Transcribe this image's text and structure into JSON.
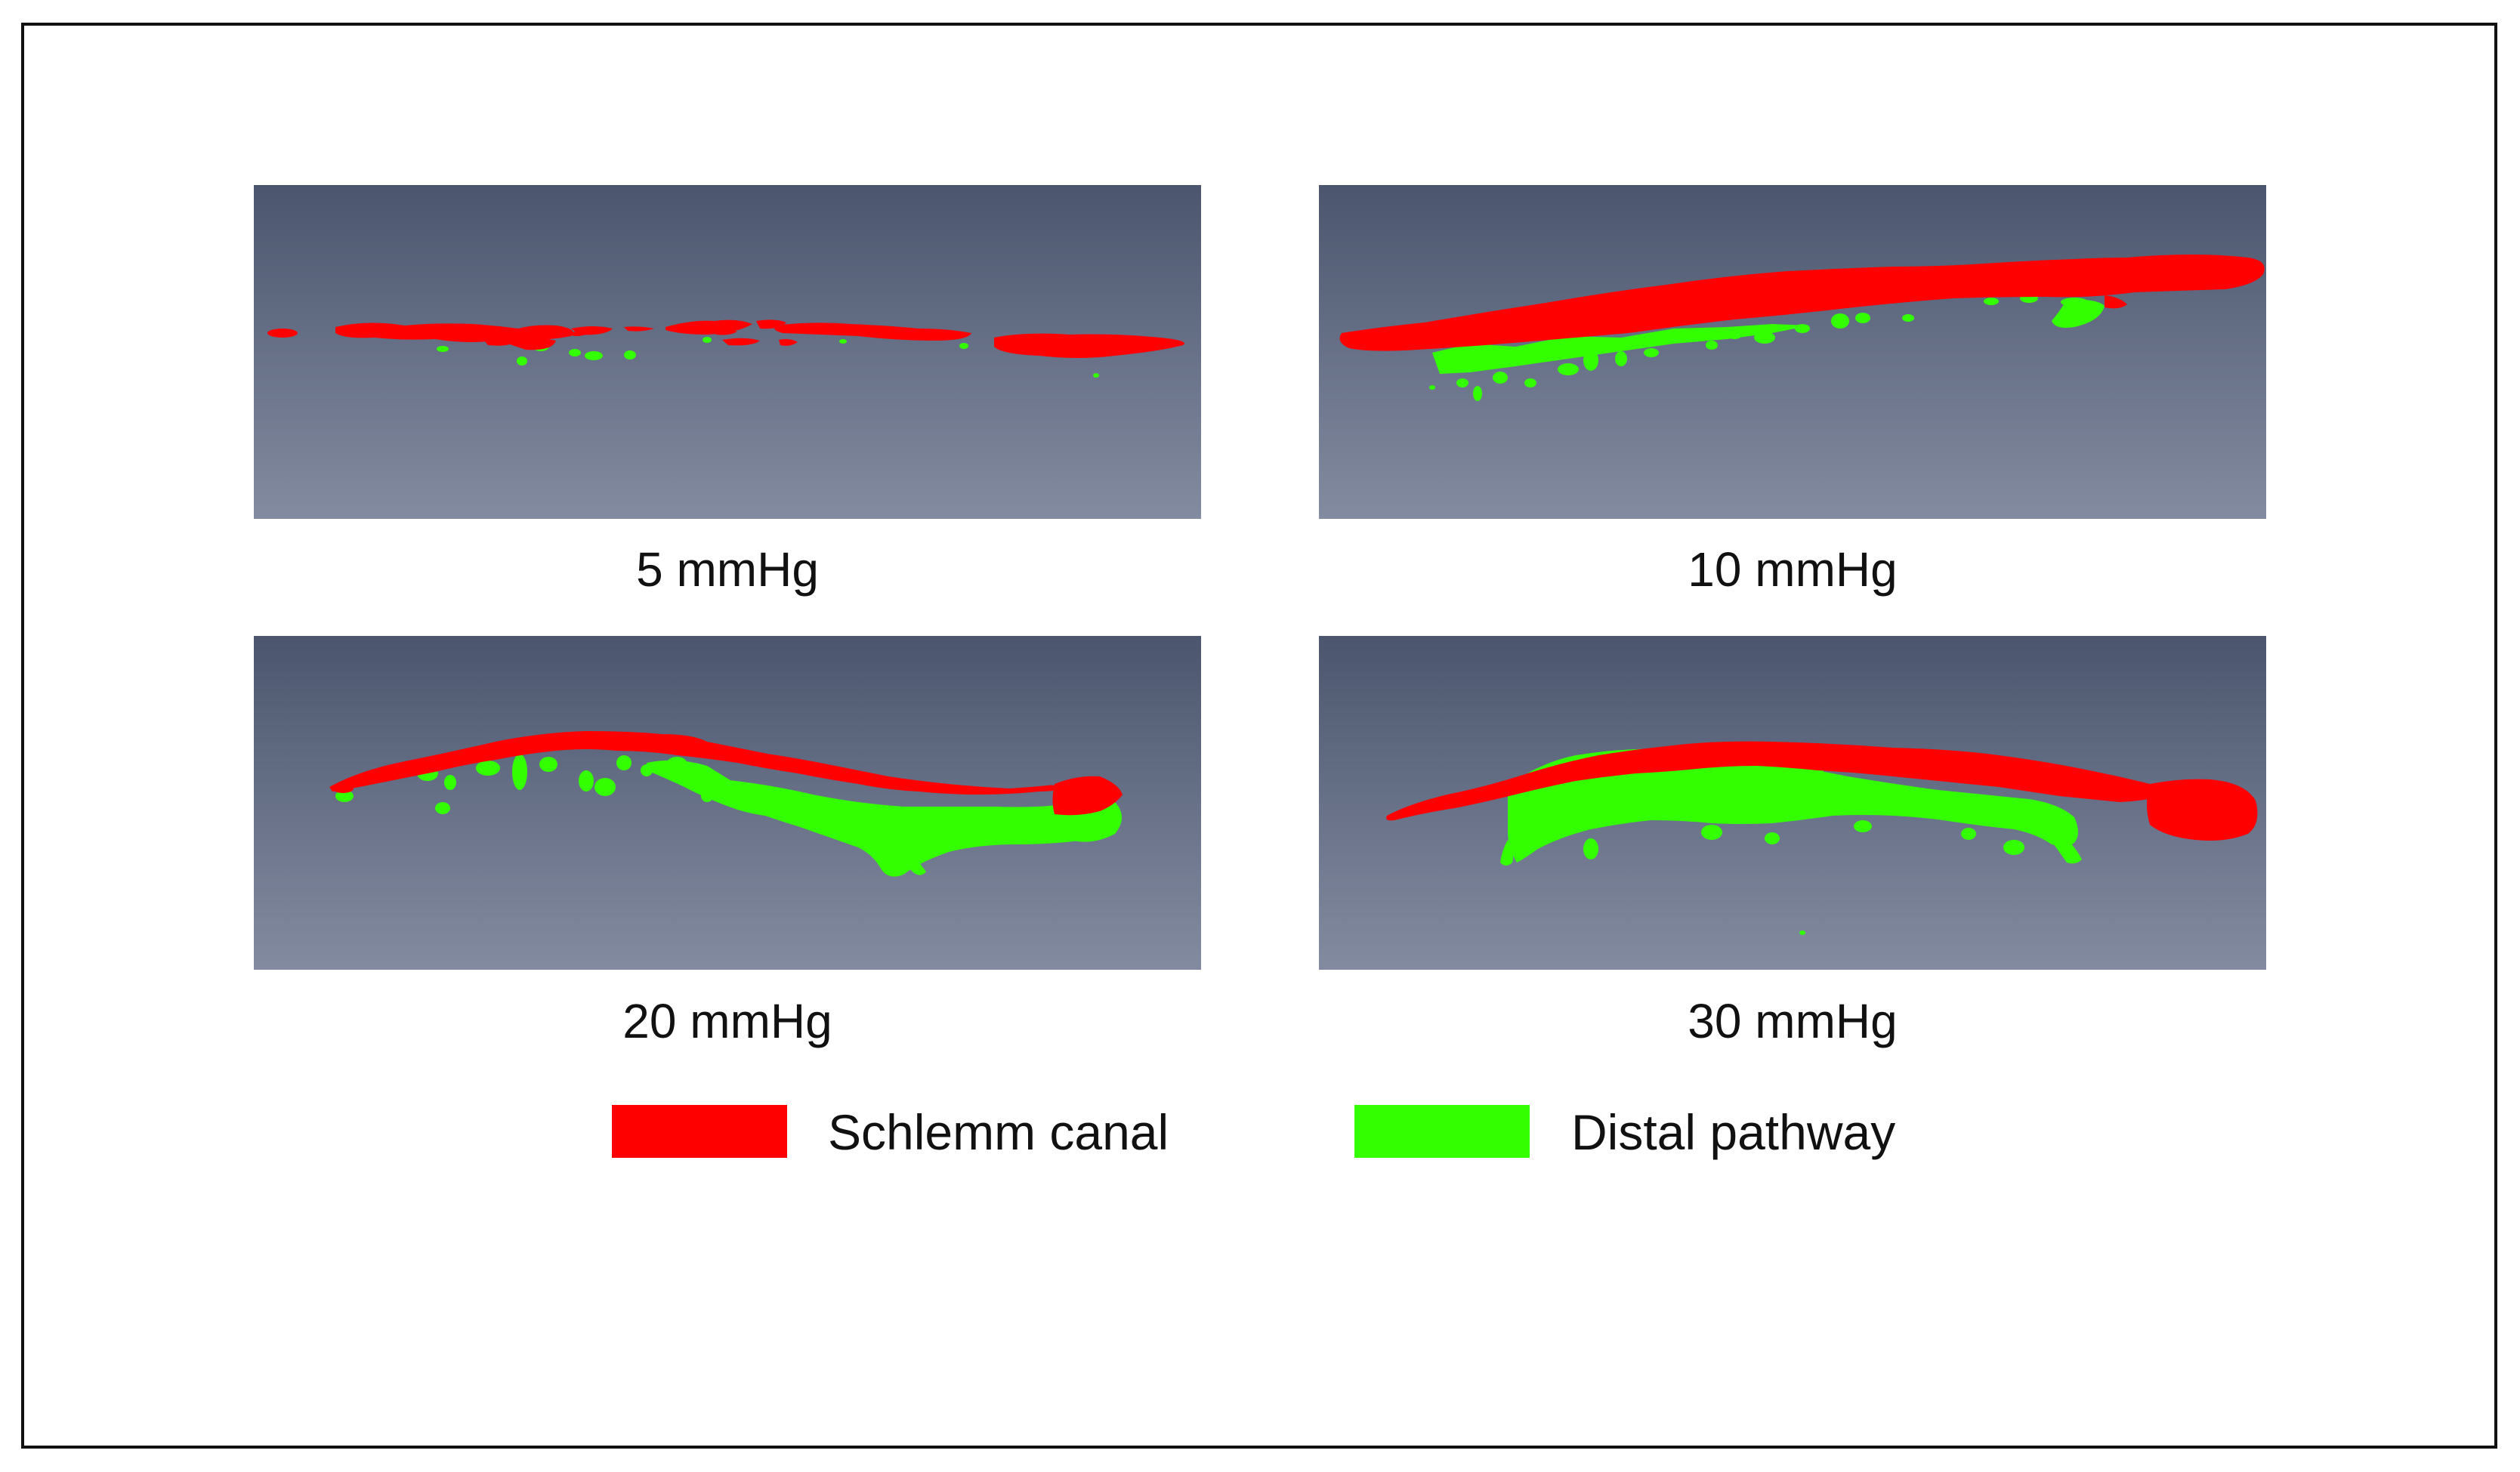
{
  "figure": {
    "panels": [
      {
        "label": "5 mmHg"
      },
      {
        "label": "10 mmHg"
      },
      {
        "label": "20 mmHg"
      },
      {
        "label": "30 mmHg"
      }
    ],
    "legend": [
      {
        "label": "Schlemm canal",
        "color": "#ff0000"
      },
      {
        "label": "Distal pathway",
        "color": "#33ff00"
      }
    ],
    "colors": {
      "background_top": "#4b566e",
      "background_bottom": "#838ba0",
      "schlemm": "#ff0000",
      "distal": "#33ff00"
    }
  }
}
